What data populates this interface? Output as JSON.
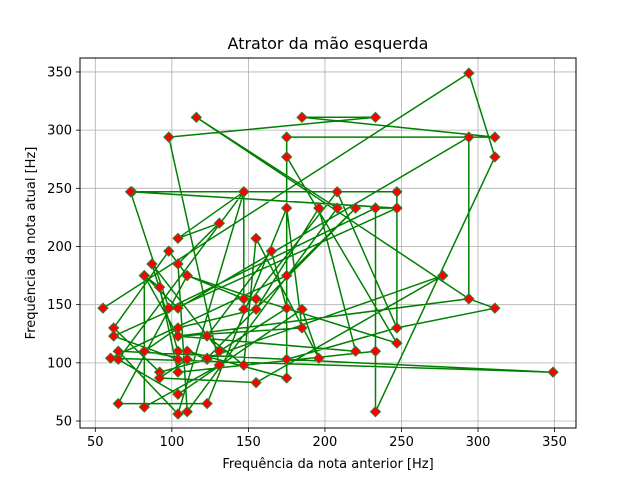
{
  "chart_data": {
    "type": "line",
    "title": "Atrator da mão esquerda",
    "xlabel": "Frequência da nota anterior [Hz]",
    "ylabel": "Frequência da nota atual [Hz]",
    "xlim": [
      40,
      364
    ],
    "ylim": [
      44,
      362
    ],
    "xticks": [
      50,
      100,
      150,
      200,
      250,
      300,
      350
    ],
    "yticks": [
      50,
      100,
      150,
      200,
      250,
      300,
      350
    ],
    "grid": true,
    "colors": {
      "line": "#008000",
      "marker_fill": "#ff0000",
      "marker_edge": "#2e7d32"
    },
    "series": [
      {
        "name": "",
        "x": [
          55,
          294,
          311,
          233,
          233,
          247,
          74,
          247,
          247,
          175,
          175,
          311,
          185,
          233,
          98,
          131,
          82,
          82,
          104,
          294,
          294,
          116,
          208,
          110,
          104,
          131,
          104,
          147,
          147,
          110,
          98,
          62,
          92,
          123,
          110,
          175,
          175,
          247,
          155,
          110,
          65,
          123,
          175,
          185,
          104,
          82,
          92,
          104,
          233,
          233,
          98,
          73,
          247,
          62,
          104,
          104,
          87,
          131,
          175,
          165,
          123,
          147,
          155,
          196,
          185,
          104,
          65,
          147,
          104,
          65,
          349,
          60,
          175,
          220,
          123,
          277,
          155,
          92,
          110,
          82,
          104,
          155,
          196,
          220,
          104,
          294,
          311,
          247,
          208,
          147
        ],
        "y": [
          147,
          349,
          277,
          58,
          233,
          233,
          247,
          247,
          130,
          103,
          294,
          294,
          311,
          311,
          294,
          98,
          62,
          175,
          147,
          294,
          155,
          311,
          233,
          58,
          185,
          220,
          207,
          247,
          155,
          175,
          196,
          130,
          92,
          103,
          110,
          87,
          277,
          117,
          155,
          175,
          65,
          65,
          233,
          130,
          123,
          175,
          165,
          92,
          110,
          233,
          147,
          247,
          233,
          123,
          103,
          110,
          185,
          110,
          147,
          196,
          123,
          98,
          207,
          104,
          146,
          73,
          103,
          247,
          56,
          110,
          92,
          104,
          175,
          233,
          104,
          175,
          83,
          87,
          103,
          110,
          130,
          146,
          233,
          110,
          123,
          155,
          147,
          130,
          247,
          146
        ]
      }
    ]
  }
}
